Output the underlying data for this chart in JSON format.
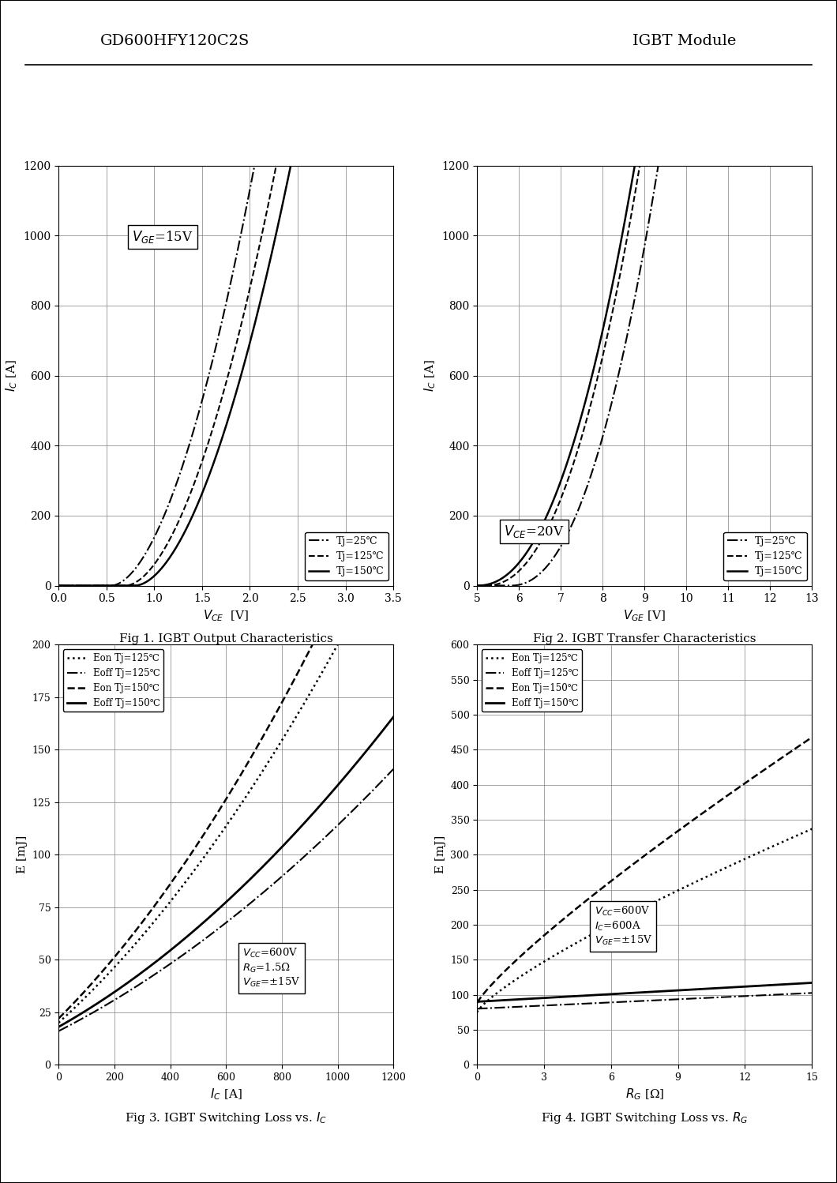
{
  "header_left": "GD600HFY120C2S",
  "header_right": "IGBT Module",
  "fig1_title": "Fig 1. IGBT Output Characteristics",
  "fig2_title": "Fig 2. IGBT Transfer Characteristics",
  "fig3_title": "Fig 3. IGBT Switching Loss vs. I₂",
  "fig4_title": "Fig 4. IGBT Switching Loss vs. R₂",
  "fig3_title_plain": "Fig 3. IGBT Switching Loss vs. IC",
  "fig4_title_plain": "Fig 4. IGBT Switching Loss vs. RG",
  "background": "#ffffff",
  "line_color": "#000000"
}
